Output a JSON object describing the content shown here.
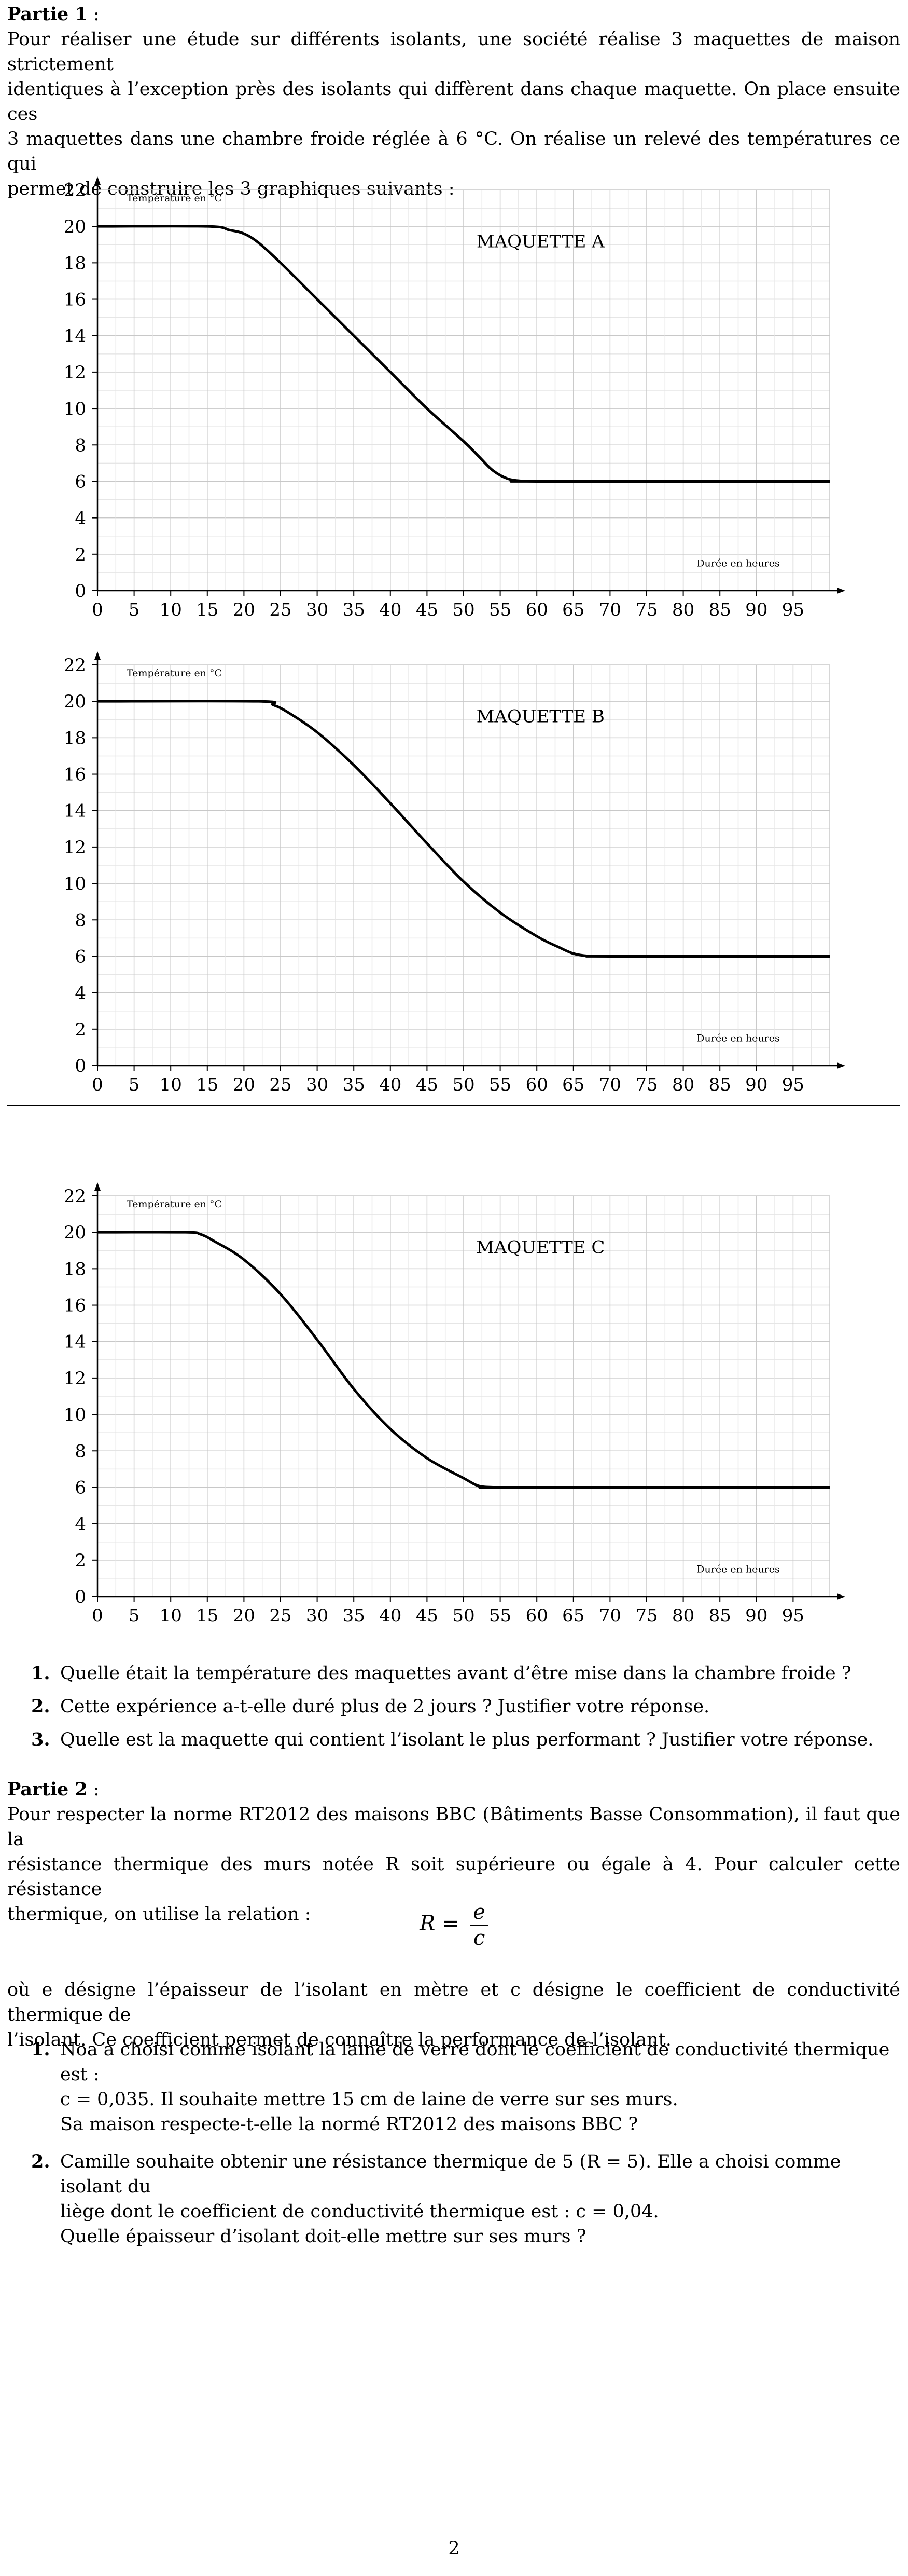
{
  "partie1": {
    "title": "Partie 1",
    "title_suffix": " :",
    "intro_lines": [
      "Pour réaliser une étude sur différents isolants, une société réalise 3 maquettes de maison strictement",
      "identiques à l’exception près des isolants qui diffèrent dans chaque maquette. On place ensuite ces",
      "3 maquettes dans une chambre froide réglée à 6 °C. On réalise un relevé des températures ce qui",
      "permet de construire les 3 graphiques suivants :"
    ],
    "questions": [
      {
        "num": "1.",
        "text": "Quelle était la température des maquettes avant d’être mise dans la chambre froide ?"
      },
      {
        "num": "2.",
        "text": "Cette expérience a-t-elle duré plus de 2 jours ? Justifier votre réponse."
      },
      {
        "num": "3.",
        "text": "Quelle est la maquette qui contient l’isolant le plus performant ? Justifier votre réponse."
      }
    ]
  },
  "chart_data": [
    {
      "type": "line",
      "title": "MAQUETTE A",
      "ylabel": "Température en °C",
      "xlabel": "Durée en heures",
      "xlim": [
        0,
        100
      ],
      "ylim": [
        0,
        22
      ],
      "xticks": [
        0,
        5,
        10,
        15,
        20,
        25,
        30,
        35,
        40,
        45,
        50,
        55,
        60,
        65,
        70,
        75,
        80,
        85,
        90,
        95
      ],
      "yticks": [
        0,
        2,
        4,
        6,
        8,
        10,
        12,
        14,
        16,
        18,
        20,
        22
      ],
      "grid": true,
      "x": [
        0,
        15,
        18,
        20,
        22,
        25,
        30,
        35,
        40,
        45,
        50,
        52,
        54,
        56,
        58,
        60,
        100
      ],
      "y": [
        20,
        20,
        19.8,
        19.6,
        19.1,
        18,
        16,
        14,
        12,
        10,
        8.2,
        7.4,
        6.6,
        6.15,
        6.02,
        6,
        6
      ]
    },
    {
      "type": "line",
      "title": "MAQUETTE B",
      "ylabel": "Température en °C",
      "xlabel": "Durée en heures",
      "xlim": [
        0,
        100
      ],
      "ylim": [
        0,
        22
      ],
      "xticks": [
        0,
        5,
        10,
        15,
        20,
        25,
        30,
        35,
        40,
        45,
        50,
        55,
        60,
        65,
        70,
        75,
        80,
        85,
        90,
        95
      ],
      "yticks": [
        0,
        2,
        4,
        6,
        8,
        10,
        12,
        14,
        16,
        18,
        20,
        22
      ],
      "grid": true,
      "x": [
        0,
        22,
        24,
        26,
        30,
        35,
        40,
        45,
        50,
        55,
        60,
        63,
        65,
        67,
        70,
        100
      ],
      "y": [
        20,
        20,
        19.8,
        19.4,
        18.3,
        16.5,
        14.4,
        12.2,
        10.1,
        8.4,
        7.1,
        6.5,
        6.15,
        6.02,
        6,
        6
      ]
    },
    {
      "type": "line",
      "title": "MAQUETTE C",
      "ylabel": "Température en °C",
      "xlabel": "Durée en heures",
      "xlim": [
        0,
        100
      ],
      "ylim": [
        0,
        22
      ],
      "xticks": [
        0,
        5,
        10,
        15,
        20,
        25,
        30,
        35,
        40,
        45,
        50,
        55,
        60,
        65,
        70,
        75,
        80,
        85,
        90,
        95
      ],
      "yticks": [
        0,
        2,
        4,
        6,
        8,
        10,
        12,
        14,
        16,
        18,
        20,
        22
      ],
      "grid": true,
      "x": [
        0,
        12,
        14,
        16,
        20,
        25,
        30,
        35,
        40,
        45,
        50,
        52,
        54,
        56,
        100
      ],
      "y": [
        20,
        20,
        19.9,
        19.5,
        18.5,
        16.6,
        14.1,
        11.4,
        9.2,
        7.6,
        6.5,
        6.08,
        6,
        6,
        6
      ]
    }
  ],
  "partie2": {
    "title": "Partie 2",
    "title_suffix": " :",
    "intro_lines": [
      "Pour respecter la norme RT2012 des maisons BBC (Bâtiments Basse Consommation), il faut que la",
      "résistance thermique des murs notée R soit supérieure ou égale à 4. Pour calculer cette résistance",
      "thermique, on utilise la relation :"
    ],
    "formula": {
      "lhs": "R =",
      "numerator": "e",
      "denominator": "c"
    },
    "after_lines": [
      "où e désigne l’épaisseur de l’isolant en mètre et c désigne le coefficient de conductivité thermique de",
      "l’isolant. Ce coefficient permet de connaître la performance de l’isolant."
    ],
    "questions": [
      {
        "num": "1.",
        "lines": [
          "Noa a choisi comme isolant la laine de verre dont le coefficient de conductivité thermique est :",
          "c = 0,035. Il souhaite mettre 15 cm de laine de verre sur ses murs.",
          "Sa maison respecte-t-elle la normé RT2012 des maisons BBC ?"
        ]
      },
      {
        "num": "2.",
        "lines": [
          "Camille souhaite obtenir une résistance thermique de 5 (R = 5). Elle a choisi comme isolant du",
          "liège dont le coefficient de conductivité thermique est : c = 0,04.",
          "Quelle épaisseur d’isolant doit-elle mettre sur ses murs ?"
        ]
      }
    ]
  },
  "page_number": "2"
}
